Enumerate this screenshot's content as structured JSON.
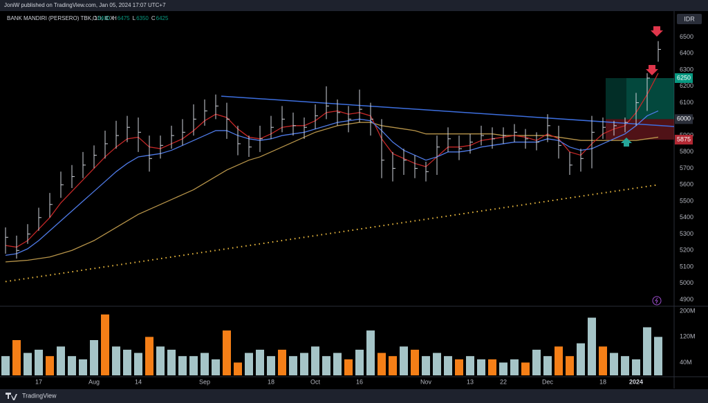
{
  "header": {
    "published": "JoniW published on TradingView.com, Jan 05, 2024 17:07 UTC+7",
    "symbol": "BANK MANDIRI (PERSERO) TBK, 1D, IDX",
    "ohlc": [
      {
        "key": "O",
        "value": 6400
      },
      {
        "key": "H",
        "value": 6475
      },
      {
        "key": "L",
        "value": 6350
      },
      {
        "key": "C",
        "value": 6425
      }
    ]
  },
  "chart_data": {
    "type": "ohlc",
    "color": "#d1d4dc",
    "currency": "IDR",
    "categories": [
      null,
      null,
      null,
      "17",
      null,
      null,
      null,
      null,
      "Aug",
      null,
      null,
      null,
      "14",
      null,
      null,
      null,
      null,
      null,
      "Sep",
      null,
      null,
      null,
      null,
      null,
      "18",
      null,
      null,
      null,
      "Oct",
      null,
      null,
      null,
      "16",
      null,
      null,
      null,
      null,
      null,
      "Nov",
      null,
      null,
      null,
      "13",
      null,
      null,
      "22",
      null,
      null,
      null,
      "Dec",
      null,
      null,
      null,
      null,
      "18",
      null,
      null,
      "2024",
      null,
      null
    ],
    "high": [
      5340,
      5290,
      5360,
      5460,
      5550,
      5680,
      5720,
      5800,
      5840,
      5930,
      5990,
      6020,
      6010,
      5900,
      5900,
      5960,
      6000,
      6090,
      6120,
      6150,
      6100,
      5960,
      5900,
      5960,
      6020,
      6080,
      6040,
      6010,
      6090,
      6200,
      6120,
      6080,
      6180,
      6100,
      6000,
      5800,
      5820,
      5780,
      5740,
      5900,
      5950,
      5900,
      5910,
      5960,
      5950,
      5950,
      5970,
      5940,
      5920,
      6030,
      5960,
      5800,
      5820,
      6020,
      6010,
      5990,
      6010,
      6160,
      6280,
      6475
    ],
    "low": [
      5180,
      5150,
      5240,
      5320,
      5400,
      5520,
      5580,
      5640,
      5700,
      5760,
      5820,
      5860,
      5800,
      5680,
      5760,
      5820,
      5840,
      5900,
      5960,
      6000,
      5880,
      5780,
      5770,
      5800,
      5880,
      5920,
      5900,
      5880,
      5940,
      6000,
      5960,
      5920,
      5980,
      5900,
      5640,
      5620,
      5660,
      5640,
      5620,
      5660,
      5800,
      5750,
      5790,
      5840,
      5820,
      5850,
      5860,
      5820,
      5810,
      5860,
      5760,
      5660,
      5680,
      5700,
      5880,
      5900,
      5920,
      5960,
      6050,
      6350
    ],
    "close": [
      5280,
      5200,
      5300,
      5400,
      5480,
      5600,
      5650,
      5720,
      5780,
      5850,
      5900,
      5950,
      5920,
      5760,
      5840,
      5900,
      5920,
      6000,
      6050,
      6080,
      6000,
      5850,
      5830,
      5880,
      5950,
      6000,
      5960,
      5950,
      6020,
      6080,
      6040,
      6000,
      6060,
      6000,
      5750,
      5700,
      5750,
      5700,
      5680,
      5830,
      5880,
      5820,
      5860,
      5900,
      5880,
      5900,
      5920,
      5880,
      5860,
      5960,
      5840,
      5720,
      5760,
      5920,
      5950,
      5960,
      5980,
      6100,
      6250,
      6425
    ],
    "ylim": [
      4860,
      6650
    ],
    "yticks": [
      4900,
      5000,
      5100,
      5200,
      5300,
      5400,
      5500,
      5600,
      5700,
      5800,
      5900,
      6000,
      6100,
      6200,
      6300,
      6400,
      6500
    ],
    "moving_averages": [
      {
        "color": "#f5c242",
        "dotted": true,
        "values": [
          5010,
          5020,
          5030,
          5040,
          5050,
          5060,
          5070,
          5080,
          5090,
          5100,
          5110,
          5120,
          5130,
          5140,
          5150,
          5160,
          5170,
          5180,
          5190,
          5200,
          5210,
          5220,
          5230,
          5240,
          5250,
          5260,
          5270,
          5280,
          5290,
          5300,
          5310,
          5320,
          5330,
          5340,
          5350,
          5360,
          5370,
          5380,
          5390,
          5400,
          5410,
          5420,
          5430,
          5440,
          5450,
          5460,
          5470,
          5480,
          5490,
          5500,
          5510,
          5520,
          5530,
          5540,
          5550,
          5560,
          5570,
          5580,
          5590,
          5600
        ]
      },
      {
        "color": "#b8954a",
        "dotted": false,
        "values": [
          5130,
          5135,
          5140,
          5150,
          5160,
          5180,
          5200,
          5230,
          5260,
          5300,
          5340,
          5380,
          5420,
          5450,
          5480,
          5510,
          5540,
          5570,
          5610,
          5650,
          5690,
          5720,
          5750,
          5770,
          5800,
          5830,
          5860,
          5890,
          5920,
          5940,
          5960,
          5970,
          5980,
          5980,
          5960,
          5950,
          5940,
          5930,
          5910,
          5910,
          5910,
          5910,
          5910,
          5910,
          5910,
          5900,
          5900,
          5900,
          5900,
          5900,
          5890,
          5880,
          5870,
          5870,
          5870,
          5870,
          5870,
          5870,
          5880,
          5890
        ]
      },
      {
        "color": "#c62828",
        "dotted": false,
        "values": [
          5230,
          5220,
          5260,
          5330,
          5400,
          5490,
          5560,
          5630,
          5700,
          5770,
          5830,
          5880,
          5890,
          5830,
          5820,
          5850,
          5880,
          5930,
          5990,
          6030,
          6010,
          5940,
          5890,
          5880,
          5910,
          5950,
          5960,
          5960,
          5990,
          6040,
          6050,
          6030,
          6040,
          6020,
          5880,
          5790,
          5760,
          5730,
          5710,
          5770,
          5830,
          5830,
          5840,
          5870,
          5880,
          5890,
          5900,
          5890,
          5870,
          5910,
          5880,
          5800,
          5780,
          5850,
          5910,
          5940,
          5960,
          6040,
          6150,
          6280
        ]
      },
      {
        "color": "#4f7be8",
        "dotted": false,
        "values": [
          5170,
          5180,
          5210,
          5260,
          5320,
          5380,
          5440,
          5500,
          5560,
          5620,
          5680,
          5730,
          5770,
          5780,
          5790,
          5810,
          5840,
          5870,
          5900,
          5930,
          5930,
          5900,
          5880,
          5870,
          5880,
          5900,
          5910,
          5920,
          5940,
          5960,
          5980,
          5990,
          6000,
          5990,
          5930,
          5860,
          5810,
          5780,
          5750,
          5770,
          5800,
          5800,
          5810,
          5830,
          5840,
          5850,
          5860,
          5860,
          5860,
          5880,
          5870,
          5830,
          5810,
          5820,
          5850,
          5880,
          5910,
          5960,
          6020,
          6050
        ]
      }
    ],
    "trendline": {
      "color": "#3d6fe0",
      "values": [
        6140,
        5955
      ]
    },
    "levels": [
      {
        "value": 6250,
        "color": "#089981"
      },
      {
        "value": 6000,
        "color": "#2a2e39"
      },
      {
        "value": 5875,
        "color": "#b22833"
      }
    ],
    "volume": {
      "ylim": [
        0,
        220
      ],
      "yticks": [
        {
          "value": 200,
          "label": "200M"
        },
        {
          "value": 120,
          "label": "120M"
        },
        {
          "value": 40,
          "label": "40M"
        }
      ],
      "values": [
        60,
        110,
        70,
        80,
        60,
        90,
        60,
        50,
        110,
        190,
        90,
        80,
        70,
        120,
        90,
        80,
        60,
        60,
        70,
        50,
        140,
        40,
        70,
        80,
        60,
        80,
        60,
        70,
        90,
        60,
        70,
        50,
        80,
        140,
        70,
        60,
        90,
        80,
        60,
        70,
        60,
        50,
        60,
        50,
        50,
        40,
        50,
        40,
        80,
        60,
        90,
        60,
        100,
        180,
        90,
        70,
        60,
        50,
        150,
        120
      ],
      "colors": [
        "#a5c4c7",
        "#f57f17",
        "#a5c4c7",
        "#a5c4c7",
        "#f57f17",
        "#a5c4c7",
        "#a5c4c7",
        "#a5c4c7",
        "#a5c4c7",
        "#f57f17",
        "#a5c4c7",
        "#a5c4c7",
        "#a5c4c7",
        "#f57f17",
        "#a5c4c7",
        "#a5c4c7",
        "#a5c4c7",
        "#a5c4c7",
        "#a5c4c7",
        "#a5c4c7",
        "#f57f17",
        "#f57f17",
        "#a5c4c7",
        "#a5c4c7",
        "#a5c4c7",
        "#f57f17",
        "#a5c4c7",
        "#a5c4c7",
        "#a5c4c7",
        "#a5c4c7",
        "#a5c4c7",
        "#f57f17",
        "#a5c4c7",
        "#a5c4c7",
        "#f57f17",
        "#f57f17",
        "#a5c4c7",
        "#f57f17",
        "#a5c4c7",
        "#a5c4c7",
        "#a5c4c7",
        "#f57f17",
        "#a5c4c7",
        "#a5c4c7",
        "#f57f17",
        "#a5c4c7",
        "#a5c4c7",
        "#f57f17",
        "#a5c4c7",
        "#a5c4c7",
        "#f57f17",
        "#f57f17",
        "#a5c4c7",
        "#a5c4c7",
        "#f57f17",
        "#a5c4c7",
        "#a5c4c7",
        "#a5c4c7",
        "#a5c4c7",
        "#a5c4c7"
      ]
    }
  },
  "footer": {
    "brand": "TradingView"
  }
}
